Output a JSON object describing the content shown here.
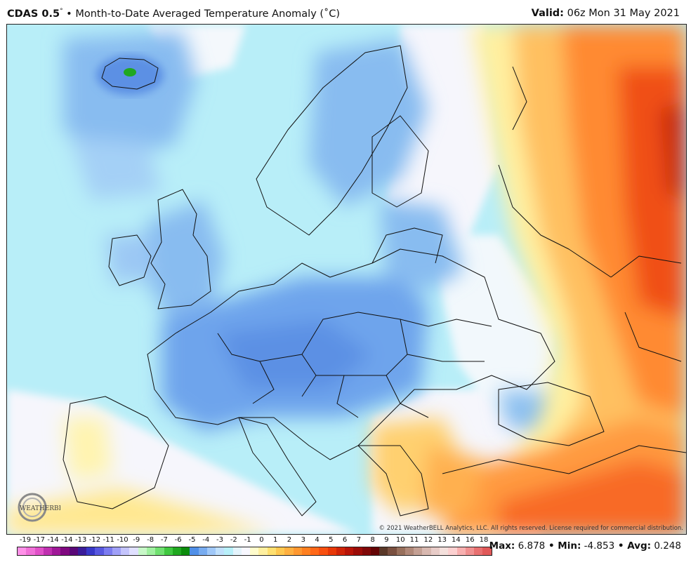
{
  "header": {
    "model": "CDAS 0.5",
    "deg": "°",
    "sep": " • ",
    "title": "Month-to-Date Averaged Temperature Anomaly (˚C)",
    "valid_label": "Valid:",
    "valid_value": " 06z Mon 31 May 2021"
  },
  "map": {
    "copyright": "© 2021 WeatherBELL Analytics, LLC. All rights reserved. License required for commercial distribution.",
    "logo_text": "WEATHERBELL"
  },
  "legend": {
    "ticks": [
      "-19",
      "-17",
      "-14",
      "-14",
      "-13",
      "-12",
      "-11",
      "-10",
      "-9",
      "-8",
      "-7",
      "-6",
      "-5",
      "-4",
      "-3",
      "-2",
      "-1",
      "0",
      "1",
      "2",
      "3",
      "4",
      "5",
      "6",
      "7",
      "8",
      "9",
      "10",
      "11",
      "12",
      "13",
      "14",
      "16",
      "18"
    ],
    "colors": [
      "#ff90e8",
      "#f070d8",
      "#e050c8",
      "#c030b0",
      "#a01898",
      "#800880",
      "#5a0878",
      "#3a1c9a",
      "#3838c8",
      "#5858e0",
      "#7c7cf0",
      "#a0a0f8",
      "#c4c4fc",
      "#e0e0ff",
      "#c8f8c8",
      "#a0f0a0",
      "#70e070",
      "#40c840",
      "#20a820",
      "#0c8c0c",
      "#5090e8",
      "#78acf0",
      "#a0c8f8",
      "#c0e0fc",
      "#b8f0fa",
      "#e4f4fc",
      "#f8f8ff",
      "#fffccc",
      "#fff0a0",
      "#ffe070",
      "#ffc850",
      "#ffb040",
      "#ff9830",
      "#ff8020",
      "#ff6818",
      "#f85010",
      "#e83808",
      "#d02408",
      "#b81408",
      "#9c0c08",
      "#800808",
      "#640404",
      "#5a3828",
      "#7a5040",
      "#98705c",
      "#b08878",
      "#c4a094",
      "#d8b8b0",
      "#e8ccc8",
      "#f4e0dc",
      "#fcd0d0",
      "#f8b0b0",
      "#f09090",
      "#e87070",
      "#e05858"
    ]
  },
  "stats": {
    "max_label": "Max:",
    "max": " 6.878",
    "min_label": " • Min:",
    "min": " -4.853",
    "avg_label": " • Avg:",
    "avg": " 0.248"
  }
}
